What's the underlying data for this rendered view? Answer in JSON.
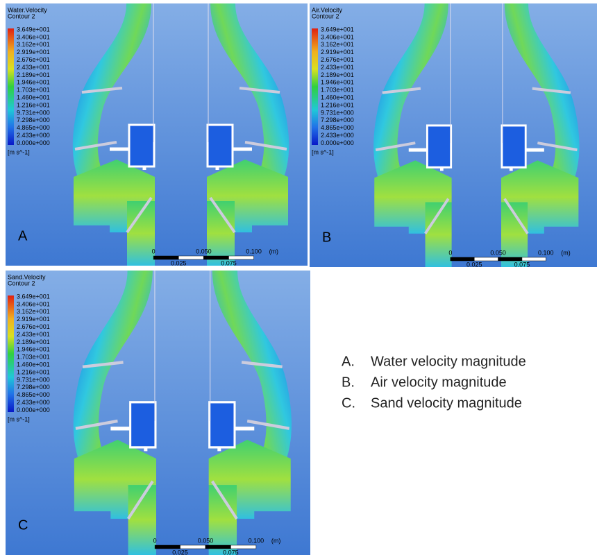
{
  "panels": [
    {
      "letter": "A",
      "title": "Water.Velocity",
      "subtitle": "Contour 2",
      "legend_labels": [
        "3.649e+001",
        "3.406e+001",
        "3.162e+001",
        "2.919e+001",
        "2.676e+001",
        "2.433e+001",
        "2.189e+001",
        "1.946e+001",
        "1.703e+001",
        "1.460e+001",
        "1.216e+001",
        "9.731e+000",
        "7.298e+000",
        "4.865e+000",
        "2.433e+000",
        "0.000e+000"
      ],
      "unit": "[m s^-1]",
      "scale_top": [
        "0",
        "0.050",
        "0.100",
        "(m)"
      ],
      "scale_bottom": [
        "0.025",
        "0.075"
      ]
    },
    {
      "letter": "B",
      "title": "Air.Velocity",
      "subtitle": "Contour 2",
      "legend_labels": [
        "3.649e+001",
        "3.406e+001",
        "3.162e+001",
        "2.919e+001",
        "2.676e+001",
        "2.433e+001",
        "2.189e+001",
        "1.946e+001",
        "1.703e+001",
        "1.460e+001",
        "1.216e+001",
        "9.731e+000",
        "7.298e+000",
        "4.865e+000",
        "2.433e+000",
        "0.000e+000"
      ],
      "unit": "[m s^-1]",
      "scale_top": [
        "0",
        "0.050",
        "0.100",
        "(m)"
      ],
      "scale_bottom": [
        "0.025",
        "0.075"
      ]
    },
    {
      "letter": "C",
      "title": "Sand.Velocity",
      "subtitle": "Contour 2",
      "legend_labels": [
        "3.649e+001",
        "3.406e+001",
        "3.162e+001",
        "2.919e+001",
        "2.676e+001",
        "2.433e+001",
        "2.189e+001",
        "1.946e+001",
        "1.703e+001",
        "1.460e+001",
        "1.216e+001",
        "9.731e+000",
        "7.298e+000",
        "4.865e+000",
        "2.433e+000",
        "0.000e+000"
      ],
      "unit": "[m s^-1]",
      "scale_top": [
        "0",
        "0.050",
        "0.100",
        "(m)"
      ],
      "scale_bottom": [
        "0.025",
        "0.075"
      ]
    }
  ],
  "caption": [
    {
      "marker": "A.",
      "text": "Water velocity magnitude"
    },
    {
      "marker": "B.",
      "text": "Air velocity magnitude"
    },
    {
      "marker": "C.",
      "text": "Sand velocity magnitude"
    }
  ]
}
